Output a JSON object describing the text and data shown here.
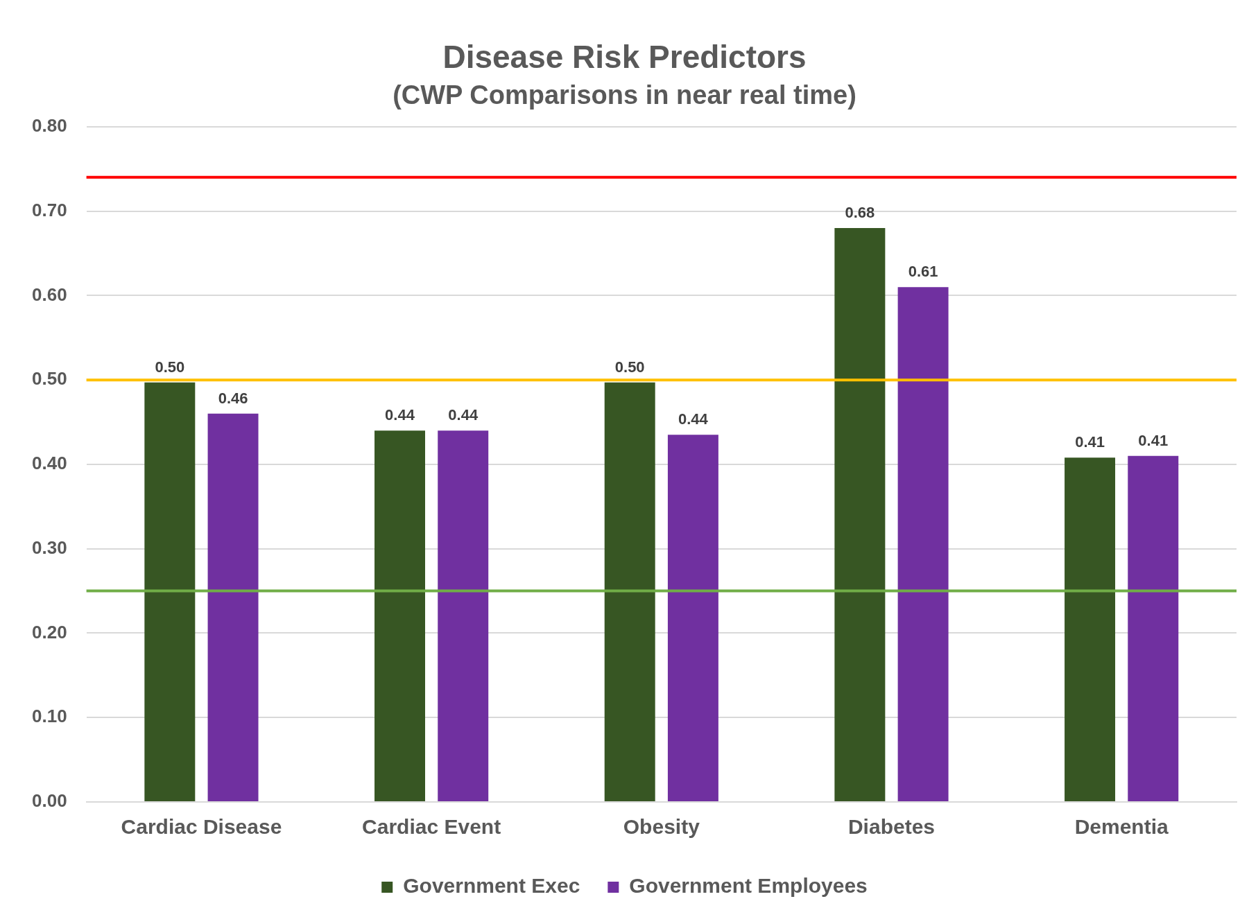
{
  "chart_data": {
    "type": "bar",
    "title": "Disease Risk Predictors",
    "subtitle": "(CWP Comparisons in near real time)",
    "categories": [
      "Cardiac Disease",
      "Cardiac Event",
      "Obesity",
      "Diabetes",
      "Dementia"
    ],
    "series": [
      {
        "name": "Government Exec",
        "color": "#375623",
        "values": [
          0.497,
          0.44,
          0.497,
          0.68,
          0.408
        ],
        "value_labels": [
          "0.50",
          "0.44",
          "0.50",
          "0.68",
          "0.41"
        ]
      },
      {
        "name": "Government Employees",
        "color": "#7030a0",
        "values": [
          0.46,
          0.44,
          0.435,
          0.61,
          0.41
        ],
        "value_labels": [
          "0.46",
          "0.44",
          "0.44",
          "0.61",
          "0.41"
        ]
      }
    ],
    "ylim": [
      0,
      0.8
    ],
    "yticks": [
      {
        "value": 0,
        "label": "0.00"
      },
      {
        "value": 0.1,
        "label": "0.10"
      },
      {
        "value": 0.2,
        "label": "0.20"
      },
      {
        "value": 0.3,
        "label": "0.30"
      },
      {
        "value": 0.4,
        "label": "0.40"
      },
      {
        "value": 0.5,
        "label": "0.50"
      },
      {
        "value": 0.6,
        "label": "0.60"
      },
      {
        "value": 0.7,
        "label": "0.70"
      },
      {
        "value": 0.8,
        "label": "0.80"
      }
    ],
    "ref_lines": [
      {
        "axis": "y",
        "value": 0.74,
        "color": "#ff0000"
      },
      {
        "axis": "y",
        "value": 0.5,
        "color": "#ffc000"
      },
      {
        "axis": "y",
        "value": 0.25,
        "color": "#70ad47"
      }
    ],
    "grid": "y",
    "legend": "bottom"
  }
}
